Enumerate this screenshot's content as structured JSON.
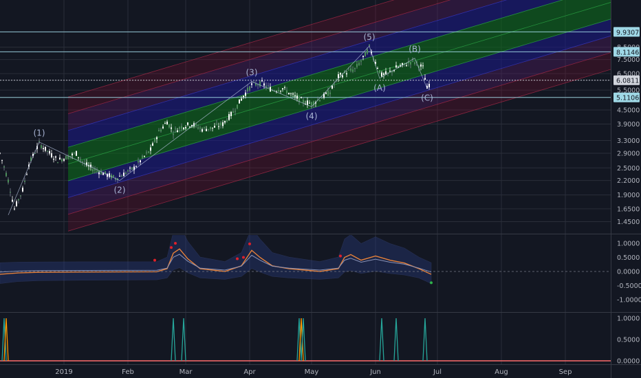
{
  "chart_data": {
    "type": "candlestick",
    "title": "",
    "main_pane": {
      "y_scale": "log",
      "y_ticks": [
        "9.9307",
        "8.5000",
        "8.1146",
        "7.5000",
        "6.5000",
        "6.0811",
        "5.5000",
        "5.1106",
        "4.5000",
        "3.9000",
        "3.3000",
        "2.9000",
        "2.5000",
        "2.2000",
        "1.9000",
        "1.6500",
        "1.4500"
      ],
      "highlighted_levels": [
        {
          "value": "9.9307",
          "color": "#9fd8e6"
        },
        {
          "value": "8.1146",
          "color": "#9fd8e6"
        },
        {
          "value": "6.0811",
          "color": "#d1d4dc"
        },
        {
          "value": "5.1106",
          "color": "#9fd8e6"
        }
      ],
      "wave_labels": [
        "(1)",
        "(2)",
        "(3)",
        "(4)",
        "(5)",
        "(A)",
        "(B)",
        "(C)"
      ],
      "wave_points": [
        {
          "label": "(1)",
          "date": "2018-12-20",
          "value": 3.25
        },
        {
          "label": "(2)",
          "date": "2019-01-28",
          "value": 2.2
        },
        {
          "label": "(3)",
          "date": "2019-04-02",
          "value": 6.0
        },
        {
          "label": "(4)",
          "date": "2019-05-01",
          "value": 4.65
        },
        {
          "label": "(5)",
          "date": "2019-05-29",
          "value": 8.6
        },
        {
          "label": "(A)",
          "date": "2019-06-03",
          "value": 6.2
        },
        {
          "label": "(B)",
          "date": "2019-06-20",
          "value": 7.6
        },
        {
          "label": "(C)",
          "date": "2019-06-26",
          "value": 5.6
        }
      ],
      "price_path": [
        [
          "2018-12-01",
          2.9
        ],
        [
          "2018-12-05",
          2.2
        ],
        [
          "2018-12-08",
          1.65
        ],
        [
          "2018-12-12",
          2.0
        ],
        [
          "2018-12-15",
          2.6
        ],
        [
          "2018-12-20",
          3.2
        ],
        [
          "2018-12-25",
          2.9
        ],
        [
          "2018-12-29",
          2.7
        ],
        [
          "2019-01-03",
          2.8
        ],
        [
          "2019-01-07",
          2.9
        ],
        [
          "2019-01-11",
          2.6
        ],
        [
          "2019-01-16",
          2.45
        ],
        [
          "2019-01-21",
          2.35
        ],
        [
          "2019-01-26",
          2.25
        ],
        [
          "2019-01-30",
          2.35
        ],
        [
          "2019-02-04",
          2.5
        ],
        [
          "2019-02-08",
          2.75
        ],
        [
          "2019-02-12",
          3.0
        ],
        [
          "2019-02-16",
          3.6
        ],
        [
          "2019-02-20",
          4.0
        ],
        [
          "2019-02-23",
          3.6
        ],
        [
          "2019-02-27",
          3.8
        ],
        [
          "2019-03-04",
          3.9
        ],
        [
          "2019-03-09",
          3.7
        ],
        [
          "2019-03-14",
          3.75
        ],
        [
          "2019-03-19",
          3.9
        ],
        [
          "2019-03-24",
          4.4
        ],
        [
          "2019-03-29",
          5.2
        ],
        [
          "2019-04-02",
          5.8
        ],
        [
          "2019-04-07",
          5.9
        ],
        [
          "2019-04-12",
          5.5
        ],
        [
          "2019-04-17",
          5.6
        ],
        [
          "2019-04-22",
          5.2
        ],
        [
          "2019-04-27",
          4.9
        ],
        [
          "2019-05-01",
          4.8
        ],
        [
          "2019-05-06",
          5.1
        ],
        [
          "2019-05-10",
          5.4
        ],
        [
          "2019-05-14",
          6.3
        ],
        [
          "2019-05-18",
          6.6
        ],
        [
          "2019-05-22",
          6.8
        ],
        [
          "2019-05-26",
          7.6
        ],
        [
          "2019-05-29",
          8.5
        ],
        [
          "2019-06-01",
          7.3
        ],
        [
          "2019-06-04",
          6.4
        ],
        [
          "2019-06-07",
          6.5
        ],
        [
          "2019-06-11",
          6.9
        ],
        [
          "2019-06-15",
          7.1
        ],
        [
          "2019-06-19",
          7.4
        ],
        [
          "2019-06-21",
          7.2
        ],
        [
          "2019-06-24",
          6.9
        ],
        [
          "2019-06-26",
          5.6
        ],
        [
          "2019-06-28",
          6.08
        ]
      ]
    },
    "oscillator_pane": {
      "y_ticks": [
        "1.0000",
        "0.5000",
        "0.0000",
        "-0.5000",
        "-1.0000"
      ],
      "signal_line": [
        [
          "2018-12-01",
          -0.1
        ],
        [
          "2018-12-10",
          -0.05
        ],
        [
          "2018-12-20",
          -0.03
        ],
        [
          "2019-01-10",
          -0.02
        ],
        [
          "2019-02-15",
          -0.01
        ],
        [
          "2019-02-20",
          0.1
        ],
        [
          "2019-02-23",
          0.65
        ],
        [
          "2019-02-26",
          0.8
        ],
        [
          "2019-03-02",
          0.45
        ],
        [
          "2019-03-08",
          0.1
        ],
        [
          "2019-03-20",
          0.0
        ],
        [
          "2019-03-28",
          0.2
        ],
        [
          "2019-04-02",
          0.75
        ],
        [
          "2019-04-06",
          0.5
        ],
        [
          "2019-04-12",
          0.2
        ],
        [
          "2019-04-20",
          0.1
        ],
        [
          "2019-05-05",
          0.0
        ],
        [
          "2019-05-14",
          0.1
        ],
        [
          "2019-05-17",
          0.5
        ],
        [
          "2019-05-20",
          0.6
        ],
        [
          "2019-05-25",
          0.4
        ],
        [
          "2019-06-01",
          0.55
        ],
        [
          "2019-06-08",
          0.4
        ],
        [
          "2019-06-15",
          0.3
        ],
        [
          "2019-06-22",
          0.1
        ],
        [
          "2019-06-28",
          -0.1
        ]
      ]
    },
    "signal_pane": {
      "y_ticks": [
        "1.0000",
        "0.5000",
        "0.0000"
      ],
      "spikes": [
        {
          "date": "2018-12-03",
          "color": "#26a69a"
        },
        {
          "date": "2018-12-04",
          "color": "#ff9800"
        },
        {
          "date": "2019-02-23",
          "color": "#26a69a"
        },
        {
          "date": "2019-02-28",
          "color": "#26a69a"
        },
        {
          "date": "2019-04-25",
          "color": "#26a69a"
        },
        {
          "date": "2019-04-26",
          "color": "#ff9800"
        },
        {
          "date": "2019-04-27",
          "color": "#26a69a"
        },
        {
          "date": "2019-06-04",
          "color": "#26a69a"
        },
        {
          "date": "2019-06-11",
          "color": "#26a69a"
        },
        {
          "date": "2019-06-25",
          "color": "#26a69a"
        }
      ]
    },
    "x_ticks": [
      {
        "label": "2019",
        "date": "2019-01-01"
      },
      {
        "label": "Feb",
        "date": "2019-02-01"
      },
      {
        "label": "Mar",
        "date": "2019-03-01"
      },
      {
        "label": "Apr",
        "date": "2019-04-01"
      },
      {
        "label": "May",
        "date": "2019-05-01"
      },
      {
        "label": "Jun",
        "date": "2019-06-01"
      },
      {
        "label": "Jul",
        "date": "2019-07-01"
      },
      {
        "label": "Aug",
        "date": "2019-08-01"
      },
      {
        "label": "Sep",
        "date": "2019-09-01"
      }
    ],
    "colors": {
      "background": "#131722",
      "grid": "#2a2e39",
      "up": "#ffffff",
      "down": "#7f8596",
      "wave_line": "#b6c2de",
      "channel_green": "#0e6b1d",
      "channel_blue": "#1c1a8c",
      "channel_purple": "#5a1a6b",
      "channel_red": "#7a1030",
      "osc_line": "#e8823a",
      "band": "#2c3f8a"
    }
  }
}
